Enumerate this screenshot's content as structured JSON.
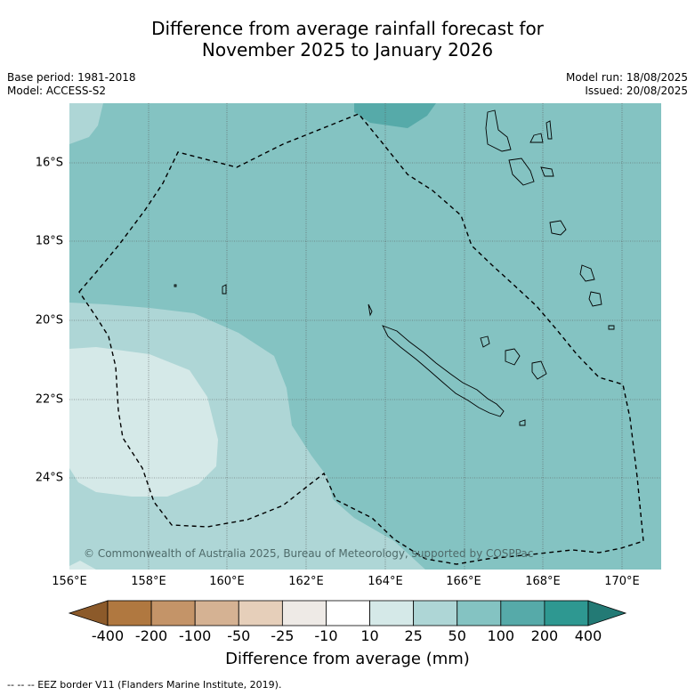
{
  "title_line1": "Difference from average rainfall forecast for",
  "title_line2": "November 2025 to January 2026",
  "meta_left": {
    "base_period": "Base period: 1981-2018",
    "model": "Model: ACCESS-S2"
  },
  "meta_right": {
    "model_run": "Model run: 18/08/2025",
    "issued": "Issued: 20/08/2025"
  },
  "map": {
    "lat_labels": [
      "16°S",
      "18°S",
      "20°S",
      "22°S",
      "24°S"
    ],
    "lon_labels": [
      "156°E",
      "158°E",
      "160°E",
      "162°E",
      "164°E",
      "166°E",
      "168°E",
      "170°E"
    ],
    "copyright": "© Commonwealth of Australia 2025, Bureau of Meteorology, supported by COSPPac",
    "colors": {
      "c10_25": "#d5e9e8",
      "c25_50": "#aed6d6",
      "c50_100": "#84c3c2",
      "c100_200": "#56aaa9"
    }
  },
  "colorbar": {
    "ticks": [
      "-400",
      "-200",
      "-100",
      "-50",
      "-25",
      "-10",
      "10",
      "25",
      "50",
      "100",
      "200",
      "400"
    ],
    "colors": [
      "#8c5a2a",
      "#b07840",
      "#c49468",
      "#d5b293",
      "#e6cfba",
      "#eeeae6",
      "#ffffff",
      "#d5e9e8",
      "#aed6d6",
      "#84c3c2",
      "#56aaa9",
      "#2e9891",
      "#237a75"
    ],
    "title": "Difference from average (mm)"
  },
  "footnote": "--  --  -- EEZ border V11 (Flanders Marine Institute, 2019)."
}
